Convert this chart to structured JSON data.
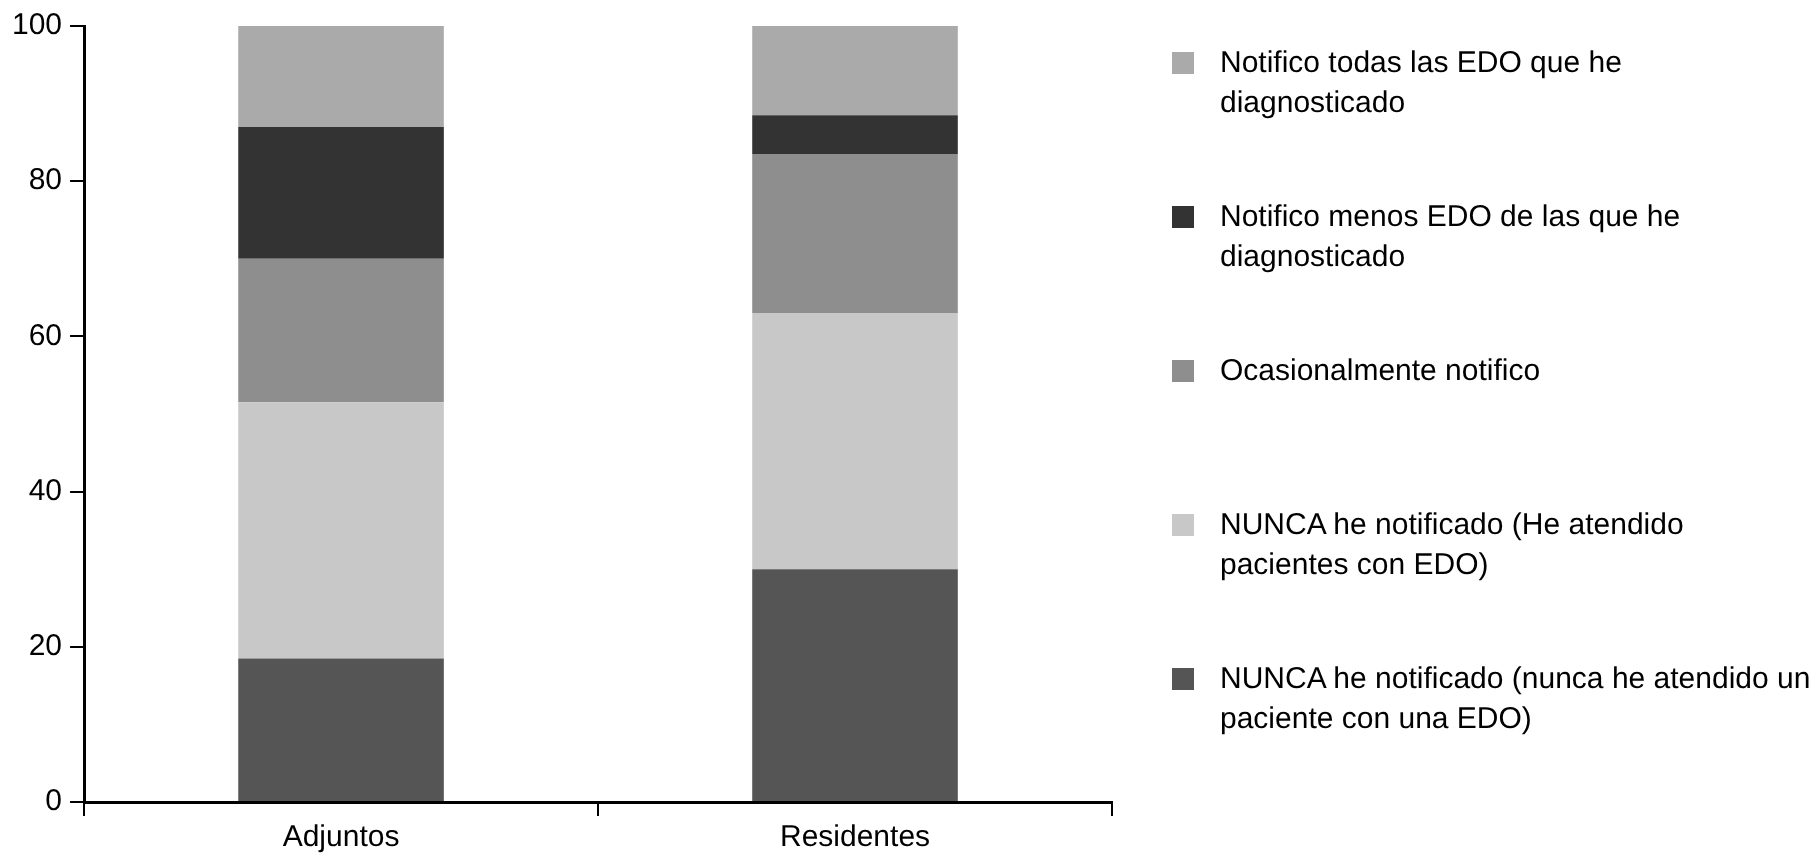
{
  "chart_data": {
    "type": "bar",
    "stacked": true,
    "categories": [
      "Adjuntos",
      "Residentes"
    ],
    "series": [
      {
        "name": "NUNCA he notificado (nunca he atendido un paciente con una EDO)",
        "color": "#555555",
        "values": [
          18.5,
          30
        ]
      },
      {
        "name": "NUNCA he notificado (He atendido pacientes con EDO)",
        "color": "#c8c8c8",
        "values": [
          33,
          33
        ]
      },
      {
        "name": "Ocasionalmente notifico",
        "color": "#8e8e8e",
        "values": [
          18.5,
          20.5
        ]
      },
      {
        "name": "Notifico menos EDO de las que he diagnosticado",
        "color": "#333333",
        "values": [
          17,
          5
        ]
      },
      {
        "name": "Notifico todas las EDO que he diagnosticado",
        "color": "#aaaaaa",
        "values": [
          13,
          11.5
        ]
      }
    ],
    "ylim": [
      0,
      100
    ],
    "yticks": [
      0,
      20,
      40,
      60,
      80,
      100
    ],
    "grid": false,
    "legend": "right"
  }
}
